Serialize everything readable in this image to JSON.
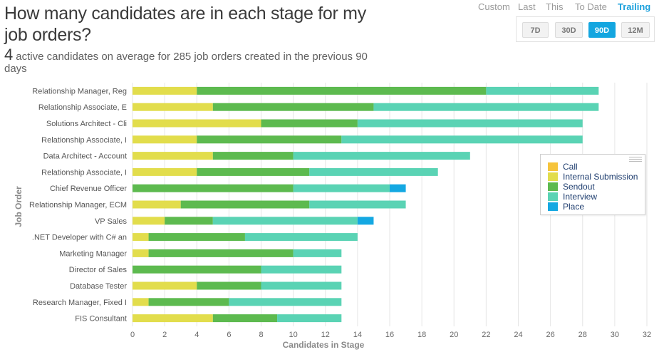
{
  "title": "How many candidates are in each stage for my job orders?",
  "subtitle": {
    "big_number": "4",
    "text": "active candidates on average for 285 job orders created in the previous 90 days"
  },
  "mode_tabs": [
    {
      "label": "Custom",
      "active": false
    },
    {
      "label": "Last",
      "active": false
    },
    {
      "label": "This",
      "active": false
    },
    {
      "label": "To Date",
      "active": false
    },
    {
      "label": "Trailing",
      "active": true
    }
  ],
  "range_buttons": [
    {
      "label": "7D",
      "active": false
    },
    {
      "label": "30D",
      "active": false
    },
    {
      "label": "90D",
      "active": true
    },
    {
      "label": "12M",
      "active": false
    }
  ],
  "colors": {
    "Call": "#f6c43c",
    "Internal Submission": "#e2dd4c",
    "Sendout": "#5dba4f",
    "Interview": "#5ad3b4",
    "Place": "#14a8e2",
    "grid": "#e6e6e6",
    "axis_text": "#666666"
  },
  "chart_data": {
    "type": "bar",
    "orientation": "horizontal",
    "stacked": true,
    "xlabel": "Candidates in Stage",
    "ylabel": "Job Order",
    "xlim": [
      0,
      32
    ],
    "x_ticks": [
      0,
      2,
      4,
      6,
      8,
      10,
      12,
      14,
      16,
      18,
      20,
      22,
      24,
      26,
      28,
      30,
      32
    ],
    "legend_position": "right",
    "categories": [
      "Relationship Manager, Reg",
      "Relationship Associate, E",
      "Solutions Architect - Cli",
      "Relationship Associate, I",
      "Data Architect - Account",
      "Relationship Associate, I",
      "Chief Revenue Officer",
      "Relationship Manager, ECM",
      "VP Sales",
      ".NET Developer with C# an",
      "Marketing Manager",
      "Director of Sales",
      "Database Tester",
      "Research Manager, Fixed I",
      "FIS Consultant"
    ],
    "series": [
      {
        "name": "Call",
        "values": [
          0,
          0,
          0,
          0,
          0,
          0,
          0,
          0,
          0,
          0,
          0,
          0,
          0,
          0,
          0
        ]
      },
      {
        "name": "Internal Submission",
        "values": [
          4,
          5,
          8,
          4,
          5,
          4,
          0,
          3,
          2,
          1,
          1,
          0,
          4,
          1,
          5
        ]
      },
      {
        "name": "Sendout",
        "values": [
          18,
          10,
          6,
          9,
          5,
          7,
          10,
          8,
          3,
          6,
          9,
          8,
          4,
          5,
          4
        ]
      },
      {
        "name": "Interview",
        "values": [
          7,
          14,
          14,
          15,
          11,
          8,
          6,
          6,
          9,
          7,
          3,
          5,
          5,
          7,
          4
        ]
      },
      {
        "name": "Place",
        "values": [
          0,
          0,
          0,
          0,
          0,
          0,
          1,
          0,
          1,
          0,
          0,
          0,
          0,
          0,
          0
        ]
      }
    ]
  }
}
